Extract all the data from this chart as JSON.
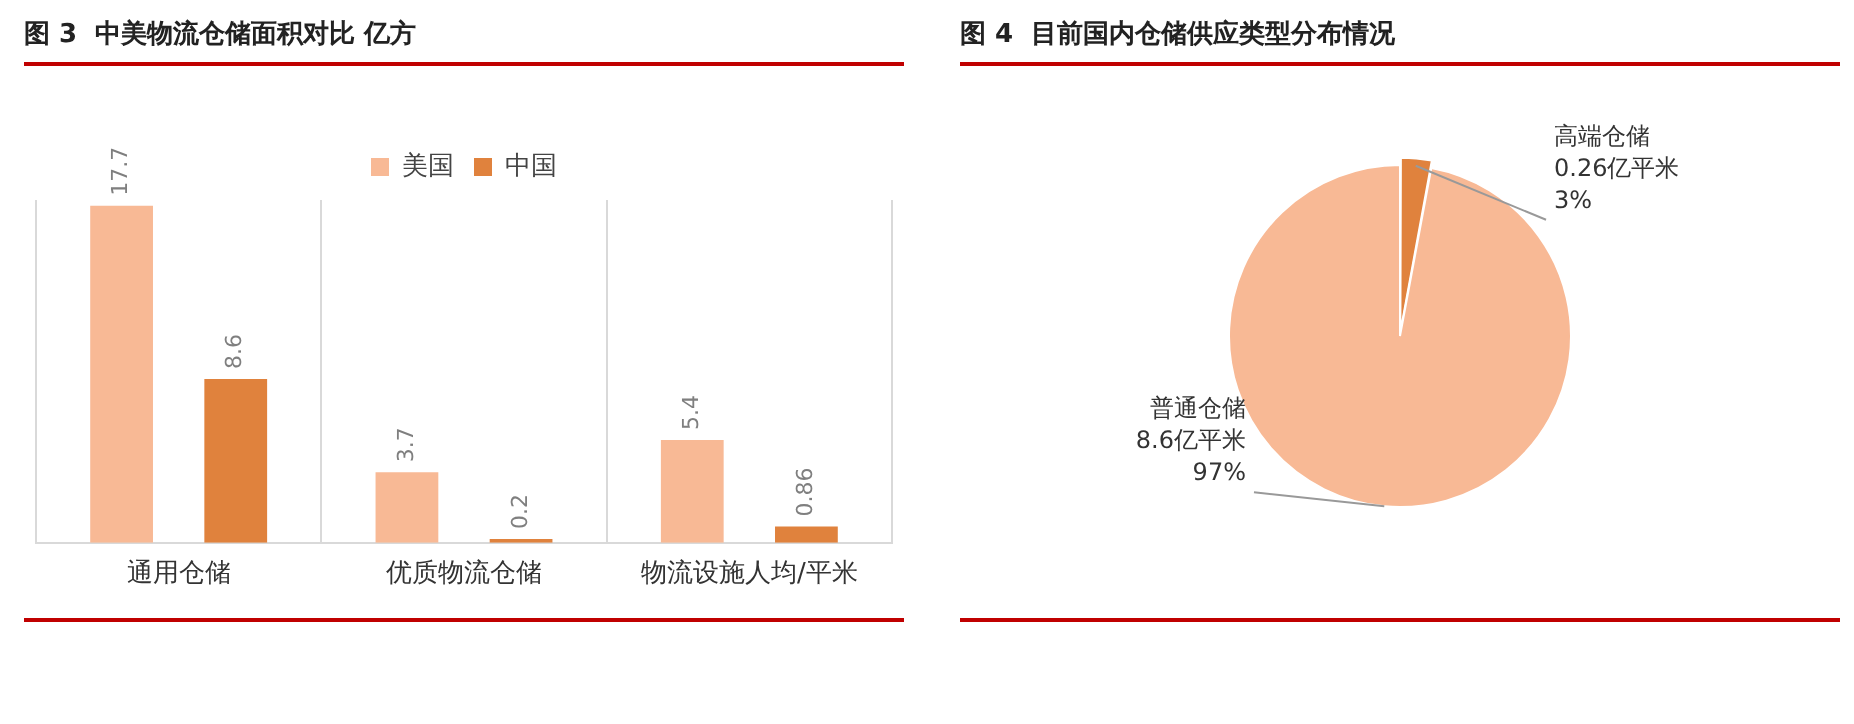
{
  "chart_data": [
    {
      "type": "bar",
      "title": "图 3  中美物流仓储面积对比 亿方",
      "categories": [
        "通用仓储",
        "优质物流仓储",
        "物流设施人均/平米"
      ],
      "series": [
        {
          "name": "美国",
          "color": "#f8b995",
          "values": [
            17.7,
            3.7,
            5.4
          ]
        },
        {
          "name": "中国",
          "color": "#e0823d",
          "values": [
            8.6,
            0.2,
            0.86
          ]
        }
      ],
      "tick_labels": "x",
      "data_labels": true,
      "legend": "top",
      "grid": "x"
    },
    {
      "type": "pie",
      "title": "图 4  目前国内仓储供应类型分布情况",
      "categories": [
        "高端仓储",
        "普通仓储"
      ],
      "values": [
        0.26,
        8.6
      ],
      "colors": [
        "#e0823d",
        "#f8b995"
      ],
      "value_labels": [
        "0.26亿平米\n3%",
        "8.6亿平米\n97%"
      ],
      "legend": false
    }
  ]
}
